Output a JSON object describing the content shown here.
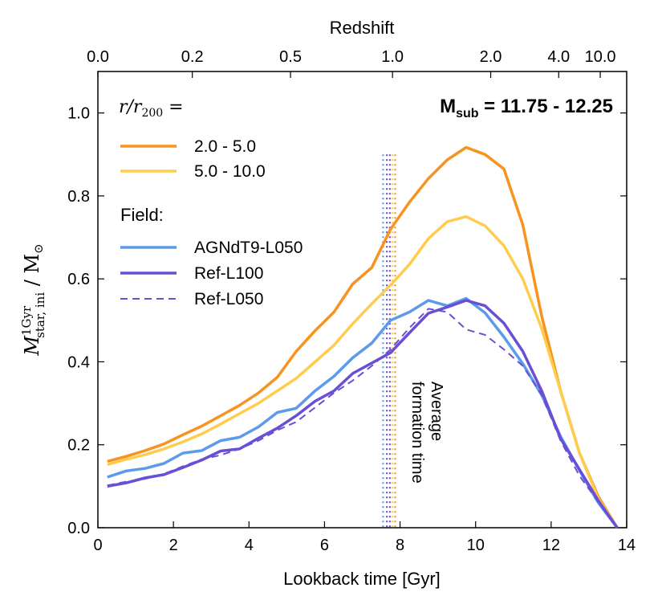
{
  "chart_data": {
    "type": "line",
    "xlabel": "Lookback time [Gyr]",
    "top_xlabel": "Redshift",
    "ylabel": {
      "base": "M",
      "sup": "1Gyr",
      "sub": "star, ini",
      "unit": " / M",
      "unit_sub": "⊙"
    },
    "xlim": [
      0,
      14
    ],
    "ylim": [
      0,
      1.1
    ],
    "xticks": [
      0,
      2,
      4,
      6,
      8,
      10,
      12,
      14
    ],
    "xtick_labels": [
      "0",
      "2",
      "4",
      "6",
      "8",
      "10",
      "12",
      "14"
    ],
    "yticks": [
      0,
      0.2,
      0.4,
      0.6,
      0.8,
      1.0
    ],
    "ytick_labels": [
      "0.0",
      "0.2",
      "0.4",
      "0.6",
      "0.8",
      "1.0"
    ],
    "top_ticks": [
      {
        "label": "0.0",
        "lookback": 0
      },
      {
        "label": "0.2",
        "lookback": 2.5
      },
      {
        "label": "0.5",
        "lookback": 5.1
      },
      {
        "label": "1.0",
        "lookback": 7.8
      },
      {
        "label": "2.0",
        "lookback": 10.4
      },
      {
        "label": "4.0",
        "lookback": 12.2
      },
      {
        "label": "10.0",
        "lookback": 13.3
      }
    ],
    "x": [
      0.25,
      0.75,
      1.25,
      1.75,
      2.25,
      2.75,
      3.25,
      3.75,
      4.25,
      4.75,
      5.25,
      5.75,
      6.25,
      6.75,
      7.25,
      7.75,
      8.25,
      8.75,
      9.25,
      9.75,
      10.25,
      10.75,
      11.25,
      11.75,
      12.25,
      12.75,
      13.25,
      13.75
    ],
    "series": [
      {
        "name": "2.0 - 5.0",
        "color": "#f7931e",
        "dash": "solid",
        "values": [
          0.16,
          0.172,
          0.186,
          0.202,
          0.224,
          0.245,
          0.27,
          0.295,
          0.325,
          0.363,
          0.425,
          0.475,
          0.52,
          0.588,
          0.627,
          0.72,
          0.785,
          0.842,
          0.887,
          0.917,
          0.9,
          0.865,
          0.73,
          0.51,
          0.33,
          0.18,
          0.075,
          0.0
        ]
      },
      {
        "name": "5.0 - 10.0",
        "color": "#ffcc4d",
        "dash": "solid",
        "values": [
          0.152,
          0.165,
          0.176,
          0.19,
          0.207,
          0.226,
          0.25,
          0.275,
          0.3,
          0.33,
          0.36,
          0.4,
          0.44,
          0.492,
          0.54,
          0.585,
          0.635,
          0.697,
          0.738,
          0.75,
          0.728,
          0.68,
          0.6,
          0.48,
          0.33,
          0.18,
          0.07,
          0.0
        ]
      },
      {
        "name": "AGNdT9-L050",
        "color": "#5b9bea",
        "dash": "solid",
        "values": [
          0.122,
          0.137,
          0.143,
          0.155,
          0.18,
          0.186,
          0.21,
          0.218,
          0.243,
          0.278,
          0.288,
          0.33,
          0.365,
          0.41,
          0.445,
          0.5,
          0.52,
          0.548,
          0.535,
          0.553,
          0.518,
          0.46,
          0.395,
          0.32,
          0.22,
          0.138,
          0.06,
          0.0
        ]
      },
      {
        "name": "Ref-L100",
        "color": "#6a4fd4",
        "dash": "solid",
        "values": [
          0.1,
          0.108,
          0.12,
          0.128,
          0.145,
          0.163,
          0.185,
          0.19,
          0.216,
          0.24,
          0.27,
          0.305,
          0.33,
          0.372,
          0.397,
          0.422,
          0.47,
          0.517,
          0.532,
          0.548,
          0.535,
          0.493,
          0.425,
          0.33,
          0.215,
          0.14,
          0.065,
          0.0
        ]
      },
      {
        "name": "Ref-L050",
        "color": "#6a4fd4",
        "dash": "dashed",
        "values": [
          0.102,
          0.111,
          0.118,
          0.13,
          0.148,
          0.165,
          0.175,
          0.19,
          0.21,
          0.235,
          0.255,
          0.29,
          0.325,
          0.355,
          0.39,
          0.43,
          0.482,
          0.528,
          0.52,
          0.478,
          0.465,
          0.43,
          0.39,
          0.32,
          0.21,
          0.125,
          0.062,
          0.0
        ]
      }
    ],
    "vlines": [
      {
        "x": 7.55,
        "color": "#5b9bea"
      },
      {
        "x": 7.65,
        "color": "#6a4fd4"
      },
      {
        "x": 7.73,
        "color": "#6a4fd4"
      },
      {
        "x": 7.8,
        "color": "#ffcc4d"
      },
      {
        "x": 7.87,
        "color": "#f7931e"
      }
    ],
    "annotation": "Average\nformation time",
    "annotation_color": "#708090",
    "legend_heading": "r/r",
    "legend_heading_sub": "200",
    "legend_heading_suffix": " =",
    "field_heading": "Field:",
    "msub_label": "M",
    "msub_sub": "sub",
    "msub_value": " = 11.75 - 12.25"
  }
}
